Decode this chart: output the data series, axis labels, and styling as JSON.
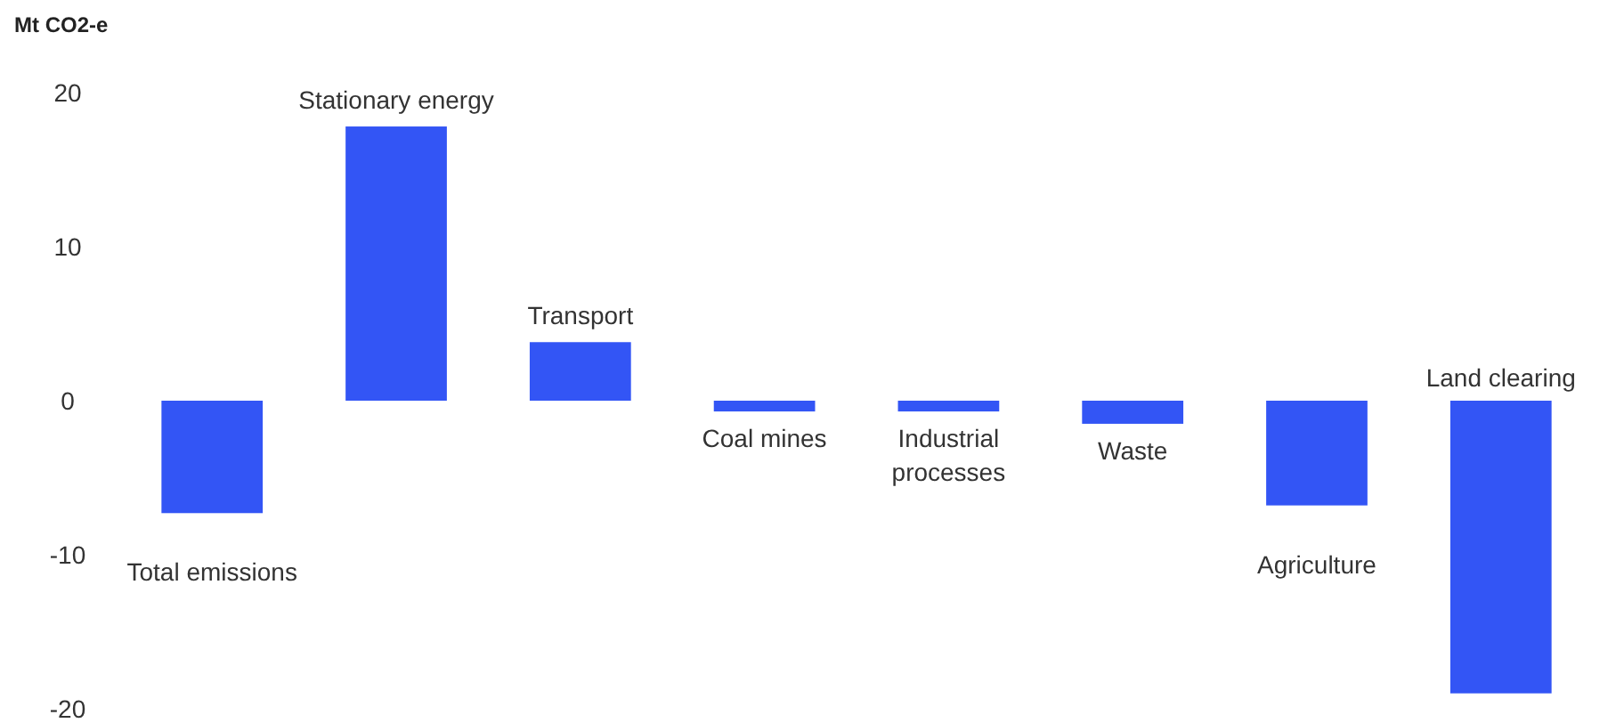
{
  "chart_data": {
    "type": "bar",
    "ylabel": "Mt CO2-e",
    "categories": [
      "Total emissions",
      "Stationary energy",
      "Transport",
      "Coal mines",
      "Industrial processes",
      "Waste",
      "Agriculture",
      "Land clearing"
    ],
    "values": [
      -7.3,
      17.8,
      3.8,
      -0.7,
      -0.7,
      -1.5,
      -6.8,
      -19
    ],
    "color": "#3355f5",
    "ylim": [
      -20,
      20
    ],
    "yticks": [
      -20,
      -10,
      0,
      10,
      20
    ],
    "grid": false
  }
}
